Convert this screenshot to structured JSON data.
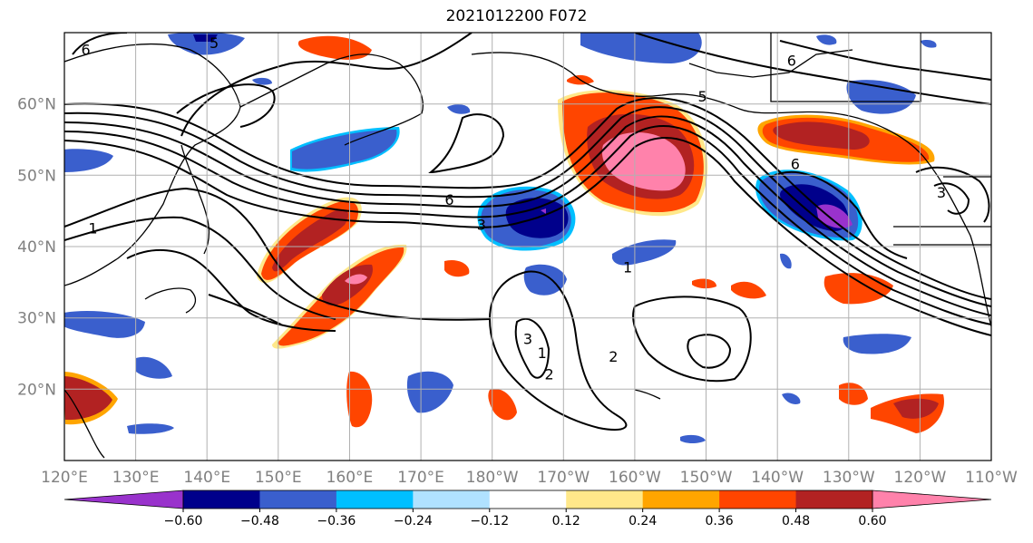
{
  "title": "2021012200 F072",
  "map": {
    "lon_ticks": [
      "120°E",
      "130°E",
      "140°E",
      "150°E",
      "160°E",
      "170°E",
      "180°W",
      "170°W",
      "160°W",
      "150°W",
      "140°W",
      "130°W",
      "120°W",
      "110°W"
    ],
    "lat_ticks": [
      "20°N",
      "30°N",
      "40°N",
      "50°N",
      "60°N"
    ],
    "lon_range": [
      120,
      250
    ],
    "lat_range": [
      10,
      70
    ],
    "grid": true,
    "projection": "equirectangular"
  },
  "contour_labels": [
    {
      "text": "6",
      "lon": 123,
      "lat": 67.5
    },
    {
      "text": "5",
      "lon": 141,
      "lat": 68.5
    },
    {
      "text": "6",
      "lon": 222,
      "lat": 66
    },
    {
      "text": "5",
      "lon": 209.5,
      "lat": 61
    },
    {
      "text": "6",
      "lon": 174,
      "lat": 46.5
    },
    {
      "text": "3",
      "lon": 178.5,
      "lat": 43
    },
    {
      "text": "1",
      "lon": 124,
      "lat": 42.5
    },
    {
      "text": "1",
      "lon": 199,
      "lat": 37
    },
    {
      "text": "2",
      "lon": 197,
      "lat": 24.5
    },
    {
      "text": "3",
      "lon": 185,
      "lat": 27
    },
    {
      "text": "1",
      "lon": 187,
      "lat": 25
    },
    {
      "text": "2",
      "lon": 188,
      "lat": 22
    },
    {
      "text": "6",
      "lon": 222.5,
      "lat": 51.5
    },
    {
      "text": "3",
      "lon": 243,
      "lat": 47.5
    }
  ],
  "colorbar": {
    "ticks": [
      "−0.60",
      "−0.48",
      "−0.36",
      "−0.24",
      "−0.12",
      "0.12",
      "0.24",
      "0.36",
      "0.48",
      "0.60"
    ],
    "colors": [
      "#9932cc",
      "#00008b",
      "#3a5fcd",
      "#00bfff",
      "#b0e2ff",
      "#ffffff",
      "#ffe88a",
      "#ffa500",
      "#ff4500",
      "#b22222",
      "#ff82ab"
    ],
    "extend": "both"
  },
  "colors": {
    "grid": "#b0b0b0",
    "contour": "#000000",
    "tick_label": "#808080"
  }
}
